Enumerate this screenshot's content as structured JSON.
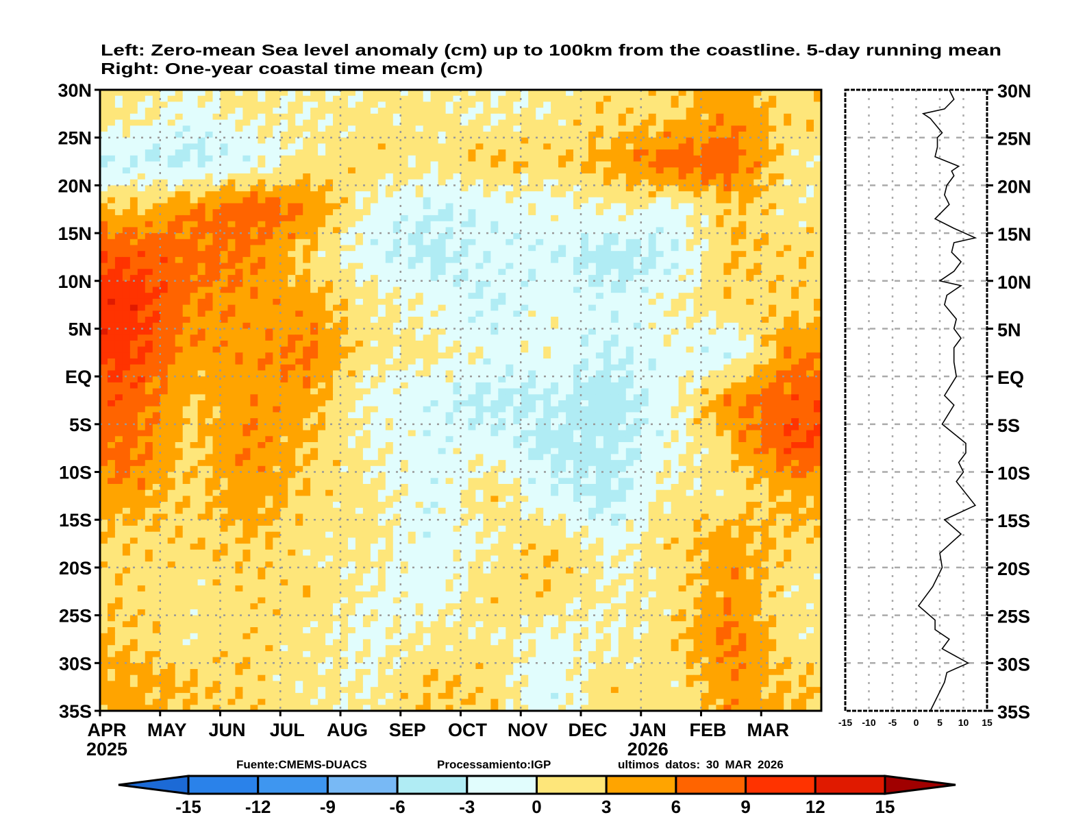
{
  "chart_data": [
    {
      "type": "heatmap",
      "title_lines": [
        "Left: Zero-mean Sea level anomaly (cm) up to 100km from the coastline. 5-day running mean",
        "Right: One-year coastal time mean (cm)"
      ],
      "x_tick_labels": [
        "APR",
        "MAY",
        "JUN",
        "JUL",
        "AUG",
        "SEP",
        "OCT",
        "NOV",
        "DEC",
        "JAN",
        "FEB",
        "MAR"
      ],
      "year_labels": [
        {
          "label": "2025",
          "month_index": 0
        },
        {
          "label": "2026",
          "month_index": 9
        }
      ],
      "y_tick_labels": [
        "30N",
        "25N",
        "20N",
        "15N",
        "10N",
        "5N",
        "EQ",
        "5S",
        "10S",
        "15S",
        "20S",
        "25S",
        "30S",
        "35S"
      ],
      "y_ticks": [
        30,
        25,
        20,
        15,
        10,
        5,
        0,
        -5,
        -10,
        -15,
        -20,
        -25,
        -30,
        -35
      ],
      "ylim": [
        -35,
        30
      ],
      "grid": true,
      "lat_centers": [
        27.5,
        22.5,
        17.5,
        12.5,
        7.5,
        2.5,
        -2.5,
        -7.5,
        -12.5,
        -17.5,
        -22.5,
        -27.5,
        -32.5
      ],
      "values": [
        [
          1,
          -1,
          1,
          0,
          1,
          1,
          0,
          1,
          2,
          2,
          5,
          2
        ],
        [
          -3,
          -4,
          -2,
          1,
          2,
          1,
          3,
          2,
          4,
          8,
          8,
          1
        ],
        [
          3,
          6,
          8,
          6,
          -1,
          -3,
          -2,
          -1,
          0,
          -1,
          3,
          1
        ],
        [
          9,
          7,
          6,
          2,
          -2,
          -4,
          -2,
          -2,
          -5,
          -3,
          3,
          2
        ],
        [
          11,
          6,
          5,
          4,
          1,
          -1,
          -3,
          -1,
          -2,
          0,
          2,
          2
        ],
        [
          10,
          5,
          5,
          7,
          1,
          1,
          -1,
          -1,
          -3,
          -1,
          -3,
          6
        ],
        [
          8,
          3,
          5,
          4,
          -1,
          -2,
          -4,
          -3,
          -5,
          -1,
          6,
          8
        ],
        [
          7,
          2,
          6,
          3,
          0,
          -2,
          -1,
          -4,
          -4,
          -1,
          3,
          9
        ],
        [
          5,
          2,
          5,
          2,
          1,
          -2,
          2,
          -2,
          -4,
          1,
          1,
          4
        ],
        [
          2,
          2,
          3,
          1,
          1,
          -2,
          0,
          3,
          -1,
          2,
          5,
          2
        ],
        [
          2,
          1,
          2,
          2,
          0,
          -2,
          2,
          2,
          0,
          1,
          5,
          1
        ],
        [
          3,
          1,
          2,
          1,
          -1,
          1,
          1,
          -1,
          0,
          2,
          7,
          1
        ],
        [
          4,
          3,
          2,
          1,
          0,
          3,
          2,
          -2,
          2,
          1,
          5,
          3
        ]
      ],
      "units": "cm"
    },
    {
      "type": "line",
      "title": "One-year coastal time mean (cm)",
      "xlim": [
        -15,
        15
      ],
      "x_tick_labels": [
        "-15",
        "-10",
        "-5",
        "0",
        "5",
        "10",
        "15"
      ],
      "x_ticks": [
        -15,
        -10,
        -5,
        0,
        5,
        10,
        15
      ],
      "ylim": [
        -35,
        30
      ],
      "lat": [
        30,
        29,
        28,
        27.5,
        27,
        25.5,
        25,
        24,
        23,
        22,
        21.5,
        21,
        20,
        19,
        18,
        17,
        16.5,
        15.5,
        14.5,
        14,
        13,
        12,
        11,
        10,
        9.5,
        8.5,
        7.5,
        6,
        5,
        4,
        3,
        1.5,
        0,
        -2,
        -3,
        -5,
        -7,
        -8,
        -9,
        -10,
        -11,
        -13.5,
        -15,
        -16.5,
        -18.5,
        -20,
        -22,
        -24,
        -25.5,
        -26.5,
        -27.5,
        -28.5,
        -30,
        -31,
        -32,
        -33,
        -35
      ],
      "mean": [
        7,
        8,
        6,
        1.5,
        3,
        5.5,
        4.5,
        4.5,
        4,
        9,
        7.5,
        8,
        6.5,
        6,
        7,
        5,
        4,
        8,
        12.5,
        8,
        7.5,
        9.5,
        8,
        5,
        9.5,
        6.5,
        6,
        8.5,
        8,
        9.5,
        8,
        8,
        8.5,
        6,
        8,
        5.5,
        10.5,
        10.5,
        9,
        10,
        8.5,
        12.5,
        6,
        9.5,
        5,
        5.5,
        3.5,
        0.5,
        4,
        4,
        7,
        5.5,
        11,
        6.5,
        6,
        5,
        3
      ]
    }
  ],
  "colorbar": {
    "levels": [
      "-15",
      "-12",
      "-9",
      "-6",
      "-3",
      "0",
      "3",
      "6",
      "9",
      "12",
      "15"
    ],
    "colors": [
      "#1c6ad6",
      "#2a82ea",
      "#3e96f0",
      "#78b9f5",
      "#b0ecf4",
      "#e1fdfd",
      "#fee67a",
      "#ffa400",
      "#ff6400",
      "#ff3300",
      "#e01a00",
      "#a00000"
    ]
  },
  "footer": {
    "source": "Fuente:CMEMS-DUACS",
    "processing": "Processamiento:IGP",
    "last_data": "ultimos datos: 30 MAR 2026"
  }
}
